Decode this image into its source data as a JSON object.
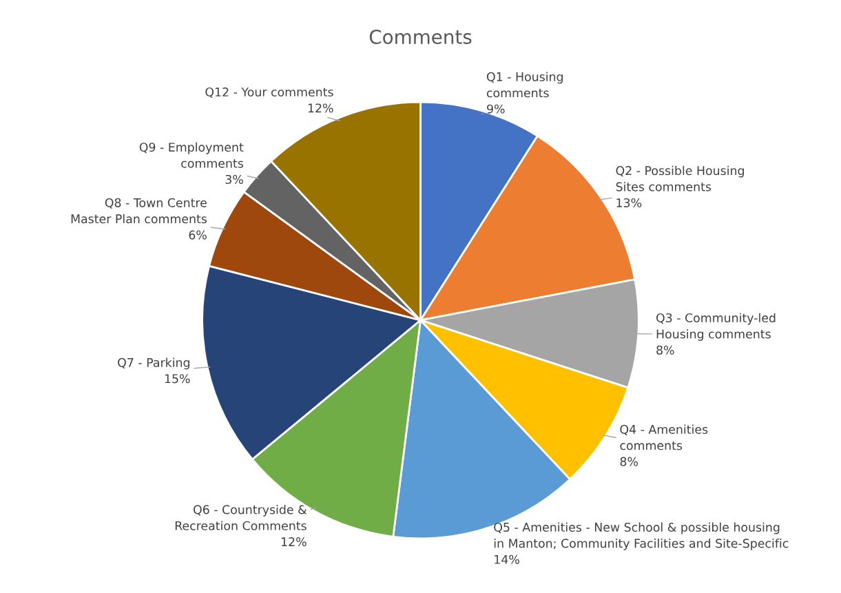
{
  "chart_data": {
    "type": "pie",
    "title": "Comments",
    "categories": [
      "Q1 - Housing\ncomments",
      "Q2 - Possible Housing\nSites comments",
      "Q3 - Community-led\nHousing comments",
      "Q4 - Amenities\ncomments",
      "Q5 - Amenities - New School & possible housing\nin Manton; Community Facilities and Site-Specific",
      "Q6 - Countryside &\nRecreation Comments",
      "Q7 - Parking",
      "Q8 - Town Centre\nMaster Plan comments",
      "Q9 - Employment\ncomments",
      "Q12 - Your comments"
    ],
    "values": [
      9,
      13,
      8,
      8,
      14,
      12,
      15,
      6,
      3,
      12
    ],
    "colors": [
      "#4472c4",
      "#ed7d31",
      "#a5a5a5",
      "#ffc000",
      "#5b9bd5",
      "#70ad47",
      "#264478",
      "#9e480e",
      "#636363",
      "#997300"
    ],
    "value_labels": [
      "9%",
      "13%",
      "8%",
      "8%",
      "14%",
      "12%",
      "15%",
      "6%",
      "3%",
      "12%"
    ]
  }
}
